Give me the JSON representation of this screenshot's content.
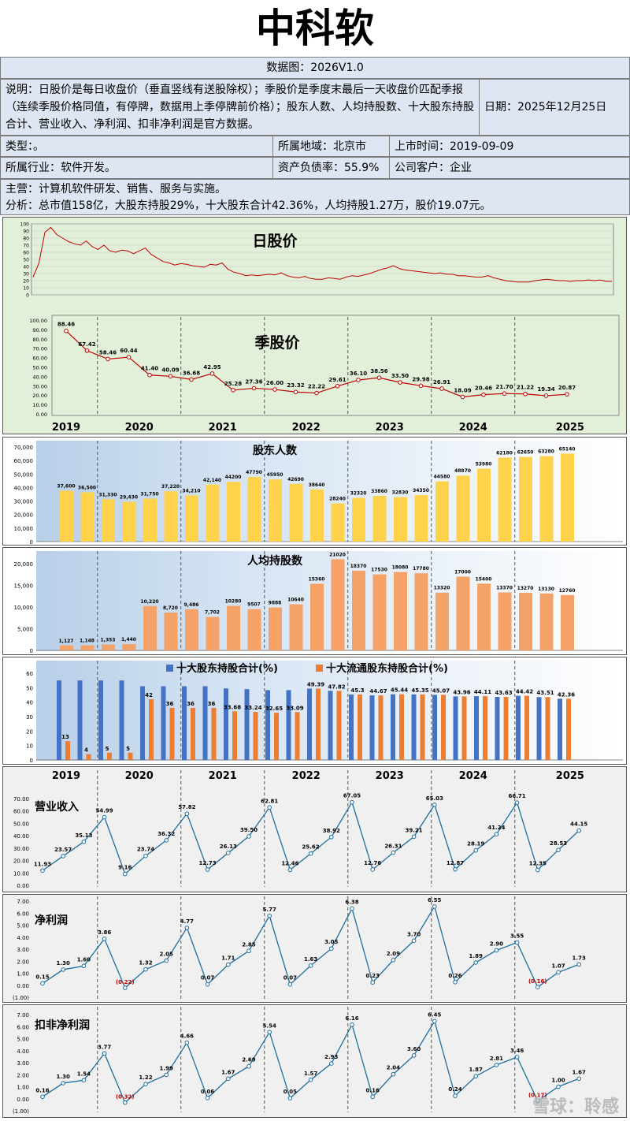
{
  "header": {
    "title": "中科软",
    "subtitle": "数据图：2026V1.0",
    "note": "说明：日股价是每日收盘价（垂直竖线有送股除权）；季股价是季度末最后一天收盘价匹配季报（连续季股价格同值，有停牌，数据用上季停牌前价格）；股东人数、人均持股数、十大股东持股合计、营业收入、净利润、扣非净利润是官方数据。",
    "date": "日期：2025年12月25日",
    "type": "类型：。",
    "region": "所属地域：北京市",
    "listing": "上市时间：2019-09-09",
    "industry": "所属行业：软件开发。",
    "debt": "资产负债率：55.9%",
    "customer": "公司客户：企业",
    "business": "主营：计算机软件研发、销售、服务与实施。",
    "analysis": "分析：总市值158亿，大股东持股29%，十大股东合计42.36%，人均持股1.27万，股价19.07元。",
    "watermark": "雪球：聆感"
  },
  "years": [
    "2019",
    "2020",
    "2021",
    "2022",
    "2023",
    "2024",
    "2025"
  ],
  "chart_data": [
    {
      "type": "line",
      "title": "日股价",
      "ylim": [
        0,
        100
      ],
      "yticks": [
        "0",
        "10",
        "20",
        "30",
        "40",
        "50",
        "60",
        "70",
        "80",
        "90",
        "100"
      ],
      "values": [
        25,
        45,
        88,
        95,
        85,
        80,
        75,
        72,
        70,
        76,
        68,
        64,
        70,
        62,
        60,
        63,
        62,
        58,
        62,
        66,
        57,
        52,
        47,
        45,
        42,
        44,
        43,
        41,
        40,
        39,
        43,
        42,
        45,
        36,
        32,
        30,
        27,
        28,
        27,
        28,
        29,
        28,
        31,
        27,
        25,
        24,
        26,
        23,
        22,
        22,
        24,
        23,
        22,
        25,
        27,
        26,
        28,
        30,
        33,
        36,
        38,
        41,
        37,
        35,
        34,
        33,
        32,
        31,
        30,
        31,
        29,
        29,
        27,
        27,
        26,
        25,
        25,
        27,
        24,
        22,
        20,
        19,
        18,
        18,
        18,
        20,
        21,
        22,
        21,
        20,
        20,
        19,
        20,
        20,
        21,
        20,
        21,
        19,
        19
      ]
    },
    {
      "type": "line",
      "title": "季股价",
      "ylim": [
        0,
        100
      ],
      "yticks": [
        "0.00",
        "10.00",
        "20.00",
        "30.00",
        "40.00",
        "50.00",
        "60.00",
        "70.00",
        "80.00",
        "90.00",
        "100.00"
      ],
      "values": [
        88.46,
        67.42,
        58.46,
        60.44,
        41.4,
        40.09,
        36.68,
        42.95,
        25.28,
        27.36,
        26.0,
        23.32,
        22.22,
        29.61,
        36.1,
        38.56,
        33.5,
        29.98,
        26.91,
        18.09,
        20.46,
        21.7,
        21.22,
        19.34,
        20.87
      ],
      "labels": [
        "88.46",
        "67.42",
        "58.46",
        "60.44",
        "41.40",
        "40.09",
        "36.68",
        "42.95",
        "25.28",
        "27.36",
        "26.00",
        "23.32",
        "22.22",
        "29.61",
        "36.10",
        "38.56",
        "33.50",
        "29.98",
        "26.91",
        "18.09",
        "20.46",
        "21.70",
        "21.22",
        "19.34",
        "20.87"
      ]
    },
    {
      "type": "bar",
      "title": "股东人数",
      "ylim": [
        0,
        70000
      ],
      "yticks": [
        "0",
        "10,000",
        "20,000",
        "30,000",
        "40,000",
        "50,000",
        "60,000",
        "70,000"
      ],
      "values": [
        37600,
        36500,
        31330,
        29430,
        31750,
        37220,
        34210,
        42140,
        44200,
        47790,
        45950,
        42690,
        38640,
        28240,
        32320,
        33860,
        32830,
        34350,
        44580,
        48870,
        53980,
        62180,
        62650,
        63280,
        65140
      ],
      "labels": [
        "37,600",
        "36,500",
        "31,330",
        "29,430",
        "31,750",
        "37,220",
        "34,210",
        "42,140",
        "44200",
        "47790",
        "45950",
        "42690",
        "38640",
        "28240",
        "32320",
        "33860",
        "32830",
        "34350",
        "44580",
        "48870",
        "53980",
        "62180",
        "62650",
        "63280",
        "65140"
      ]
    },
    {
      "type": "bar",
      "title": "人均持股数",
      "ylim": [
        0,
        20000
      ],
      "yticks": [
        "0",
        "5,000",
        "10,000",
        "15,000",
        "20,000"
      ],
      "values": [
        1127,
        1148,
        1353,
        1440,
        10220,
        8720,
        9486,
        7702,
        10280,
        9507,
        9888,
        10640,
        15360,
        21020,
        18370,
        17530,
        18080,
        17780,
        13320,
        17000,
        15400,
        13370,
        13270,
        13130,
        12760
      ],
      "labels": [
        "1,127",
        "1,148",
        "1,353",
        "1,440",
        "10,220",
        "8,720",
        "9,486",
        "7,702",
        "10280",
        "9507",
        "9888",
        "10640",
        "15360",
        "21020",
        "18370",
        "17530",
        "18080",
        "17780",
        "13320",
        "17000",
        "15400",
        "13370",
        "13270",
        "13130",
        "12760"
      ]
    },
    {
      "type": "bar",
      "ylim": [
        0,
        60
      ],
      "yticks": [
        "0",
        "10",
        "20",
        "30",
        "40",
        "50",
        "60"
      ],
      "series": [
        {
          "name": "十大股东持股合计(%)",
          "color": "#4472c4",
          "values": [
            55,
            55,
            55,
            55,
            51,
            51,
            51,
            51,
            49.5,
            49,
            48.3,
            48.3,
            49.39,
            47.82,
            45.3,
            44.67,
            45.44,
            45.35,
            45.07,
            43.96,
            44.11,
            43.63,
            44.42,
            43.51,
            42.36
          ]
        },
        {
          "name": "十大流通股东持股合计(%)",
          "color": "#ed7d31",
          "values": [
            13,
            4,
            5,
            5,
            42,
            36,
            36,
            36,
            33.68,
            33.24,
            32.65,
            33.09,
            49.39,
            47.82,
            45.3,
            44.67,
            45.44,
            45.35,
            45.07,
            43.96,
            44.11,
            43.63,
            44.42,
            43.51,
            42.36
          ],
          "labels": [
            "13",
            "4",
            "5",
            "5",
            "42",
            "36",
            "36",
            "36",
            "33.68",
            "33.24",
            "32.65",
            "33.09",
            "49.39",
            "47.82",
            "45.3",
            "44.67",
            "45.44",
            "45.35",
            "45.07",
            "43.96",
            "44.11",
            "43.63",
            "44.42",
            "43.51",
            "42.36"
          ]
        }
      ]
    },
    {
      "type": "line",
      "title": "营业收入",
      "ylim": [
        0,
        70
      ],
      "yticks": [
        "0.00",
        "10.00",
        "20.00",
        "30.00",
        "40.00",
        "50.00",
        "60.00",
        "70.00"
      ],
      "values": [
        11.93,
        23.57,
        35.13,
        54.99,
        9.16,
        23.74,
        36.32,
        57.82,
        12.73,
        26.13,
        39.5,
        62.81,
        12.46,
        25.62,
        38.92,
        67.05,
        12.76,
        26.31,
        39.21,
        65.03,
        12.87,
        28.19,
        41.24,
        66.71,
        12.35,
        28.53,
        44.15
      ],
      "labels": [
        "11.93",
        "23.57",
        "35.13",
        "54.99",
        "9.16",
        "23.74",
        "36.32",
        "57.82",
        "12.73",
        "26.13",
        "39.50",
        "62.81",
        "12.46",
        "25.62",
        "38.92",
        "67.05",
        "12.76",
        "26.31",
        "39.21",
        "65.03",
        "12.87",
        "28.19",
        "41.24",
        "66.71",
        "12.35",
        "28.53",
        "44.15"
      ]
    },
    {
      "type": "line",
      "title": "净利润",
      "ylim": [
        -1,
        7
      ],
      "yticks": [
        "(1.00)",
        "0.00",
        "1.00",
        "2.00",
        "3.00",
        "4.00",
        "5.00",
        "6.00",
        "7.00"
      ],
      "values": [
        0.15,
        1.3,
        1.6,
        3.86,
        -0.22,
        1.32,
        2.05,
        4.77,
        0.07,
        1.71,
        2.85,
        5.77,
        0.07,
        1.63,
        3.05,
        6.38,
        0.23,
        2.09,
        3.7,
        6.55,
        0.26,
        1.89,
        2.9,
        3.55,
        -0.16,
        1.07,
        1.73
      ],
      "labels": [
        "0.15",
        "1.30",
        "1.60",
        "3.86",
        "(0.22)",
        "1.32",
        "2.05",
        "4.77",
        "0.07",
        "1.71",
        "2.85",
        "5.77",
        "0.07",
        "1.63",
        "3.05",
        "6.38",
        "0.23",
        "2.09",
        "3.70",
        "6.55",
        "0.26",
        "1.89",
        "2.90",
        "3.55",
        "(0.16)",
        "1.07",
        "1.73"
      ]
    },
    {
      "type": "line",
      "title": "扣非净利润",
      "ylim": [
        -1,
        7
      ],
      "yticks": [
        "(1.00)",
        "0.00",
        "1.00",
        "2.00",
        "3.00",
        "4.00",
        "5.00",
        "6.00",
        "7.00"
      ],
      "values": [
        0.16,
        1.3,
        1.54,
        3.77,
        -0.32,
        1.22,
        1.99,
        4.66,
        0.06,
        1.67,
        2.69,
        5.54,
        0.05,
        1.57,
        2.93,
        6.16,
        0.16,
        2.04,
        3.6,
        6.45,
        0.24,
        1.87,
        2.81,
        3.46,
        -0.17,
        1.0,
        1.67
      ],
      "labels": [
        "0.16",
        "1.30",
        "1.54",
        "3.77",
        "(0.32)",
        "1.22",
        "1.99",
        "4.66",
        "0.06",
        "1.67",
        "2.69",
        "5.54",
        "0.05",
        "1.57",
        "2.93",
        "6.16",
        "0.16",
        "2.04",
        "3.60",
        "6.45",
        "0.24",
        "1.87",
        "2.81",
        "3.46",
        "(0.17)",
        "1.00",
        "1.67"
      ]
    }
  ]
}
